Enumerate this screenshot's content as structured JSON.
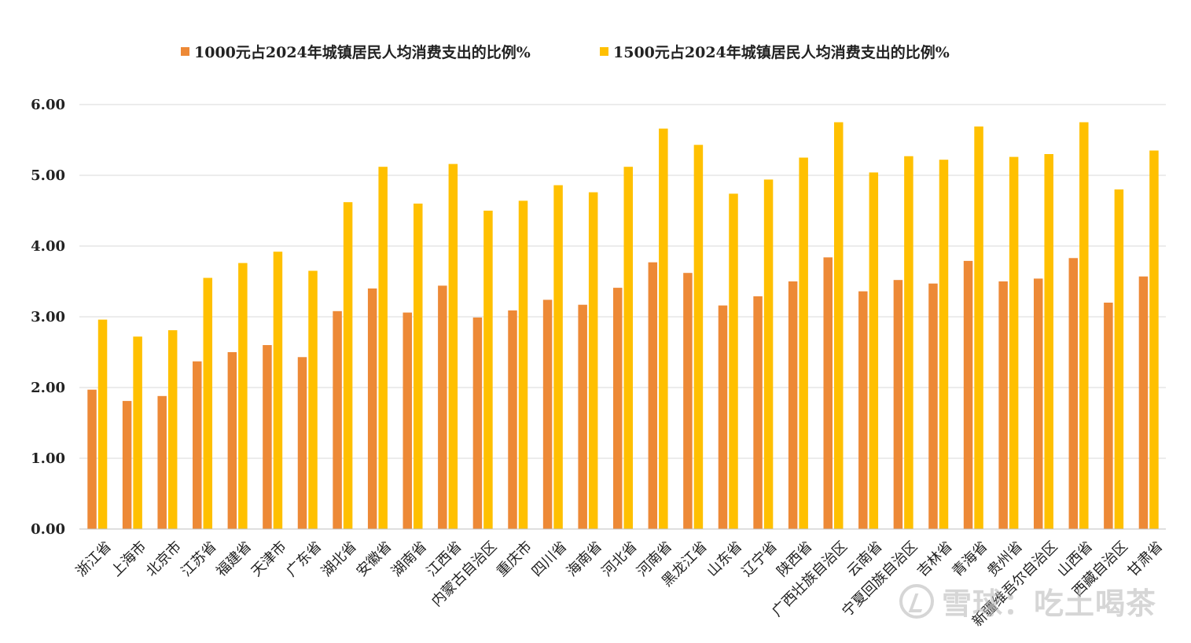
{
  "chart_data": {
    "type": "bar",
    "title": "",
    "xlabel": "",
    "ylabel": "",
    "ylim": [
      0,
      6
    ],
    "yticks": [
      "0.00",
      "1.00",
      "2.00",
      "3.00",
      "4.00",
      "5.00",
      "6.00"
    ],
    "grid": true,
    "legend_position": "top",
    "categories": [
      "浙江省",
      "上海市",
      "北京市",
      "江苏省",
      "福建省",
      "天津市",
      "广东省",
      "湖北省",
      "安徽省",
      "湖南省",
      "江西省",
      "内蒙古自治区",
      "重庆市",
      "四川省",
      "海南省",
      "河北省",
      "河南省",
      "黑龙江省",
      "山东省",
      "辽宁省",
      "陕西省",
      "广西壮族自治区",
      "云南省",
      "宁夏回族自治区",
      "吉林省",
      "青海省",
      "贵州省",
      "新疆维吾尔自治区",
      "山西省",
      "西藏自治区",
      "甘肃省"
    ],
    "series": [
      {
        "name": "1000元占2024年城镇居民人均消费支出的比例%",
        "color": "#ED8936",
        "values": [
          1.97,
          1.81,
          1.88,
          2.37,
          2.5,
          2.6,
          2.43,
          3.08,
          3.4,
          3.06,
          3.44,
          2.99,
          3.09,
          3.24,
          3.17,
          3.41,
          3.77,
          3.62,
          3.16,
          3.29,
          3.5,
          3.84,
          3.36,
          3.52,
          3.47,
          3.79,
          3.5,
          3.54,
          3.83,
          3.2,
          3.57
        ]
      },
      {
        "name": "1500元占2024年城镇居民人均消费支出的比例%",
        "color": "#FFC000",
        "values": [
          2.96,
          2.72,
          2.81,
          3.55,
          3.76,
          3.92,
          3.65,
          4.62,
          5.12,
          4.6,
          5.16,
          4.5,
          4.64,
          4.86,
          4.76,
          5.12,
          5.66,
          5.43,
          4.74,
          4.94,
          5.25,
          5.75,
          5.04,
          5.27,
          5.22,
          5.69,
          5.26,
          5.3,
          5.75,
          4.8,
          5.35
        ]
      }
    ]
  },
  "watermark": {
    "text": "雪球：吃土喝茶",
    "logo_icon": "snowball-logo-icon"
  }
}
